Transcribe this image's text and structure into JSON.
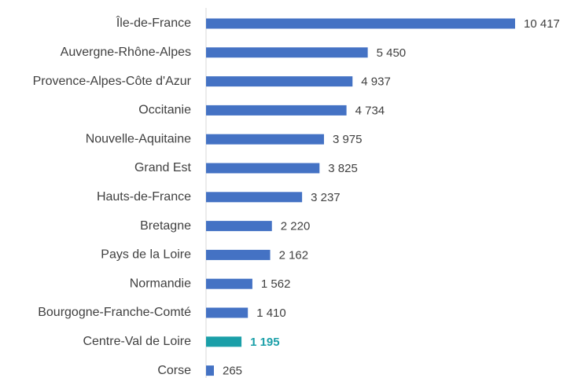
{
  "chart_data": {
    "type": "bar",
    "orientation": "horizontal",
    "categories": [
      "Île-de-France",
      "Auvergne-Rhône-Alpes",
      "Provence-Alpes-Côte d'Azur",
      "Occitanie",
      "Nouvelle-Aquitaine",
      "Grand Est",
      "Hauts-de-France",
      "Bretagne",
      "Pays de la Loire",
      "Normandie",
      "Bourgogne-Franche-Comté",
      "Centre-Val de Loire",
      "Corse"
    ],
    "values": [
      10417,
      5450,
      4937,
      4734,
      3975,
      3825,
      3237,
      2220,
      2162,
      1562,
      1410,
      1195,
      265
    ],
    "value_labels": [
      "10 417",
      "5 450",
      "4 937",
      "4 734",
      "3 975",
      "3 825",
      "3 237",
      "2 220",
      "2 162",
      "1 562",
      "1 410",
      "1 195",
      "265"
    ],
    "colors": [
      "#4472c4",
      "#4472c4",
      "#4472c4",
      "#4472c4",
      "#4472c4",
      "#4472c4",
      "#4472c4",
      "#4472c4",
      "#4472c4",
      "#4472c4",
      "#4472c4",
      "#1a9fa8",
      "#4472c4"
    ]
  }
}
